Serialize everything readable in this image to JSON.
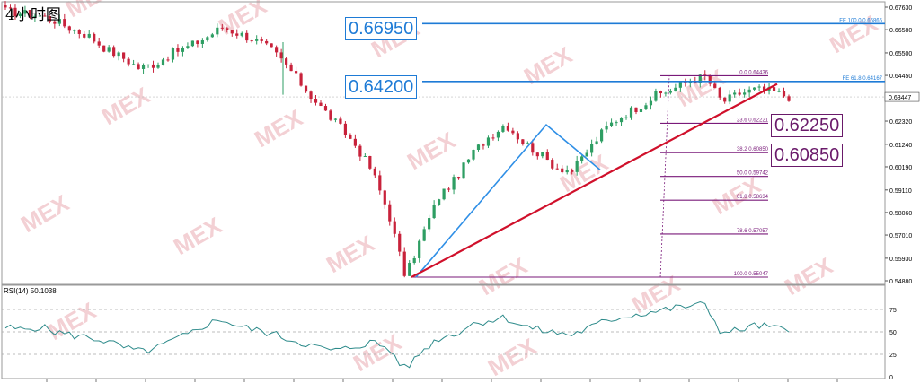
{
  "title": "4小时图",
  "chart_data": {
    "type": "candlestick",
    "price_axis": {
      "ticks": [
        "0.67630",
        "0.66580",
        "0.65500",
        "0.64450",
        "0.63447",
        "0.62320",
        "0.61240",
        "0.60190",
        "0.59110",
        "0.58060",
        "0.57010",
        "0.55930",
        "0.54880"
      ],
      "ylim": [
        0.5488,
        0.6763
      ],
      "current_price": "0.63447"
    },
    "rsi_axis": {
      "label": "RSI(14) 50.1038",
      "ticks": [
        "100",
        "75",
        "50",
        "25",
        "0"
      ],
      "ylim": [
        0,
        100
      ],
      "levels": [
        75,
        50,
        25
      ]
    },
    "levels": [
      {
        "name": "fe-100",
        "text": "FE 100.0  0.66865",
        "value": 0.66865,
        "color": "#1e7bd6"
      },
      {
        "name": "fe-618",
        "text": "FE 61.8  0.64167",
        "value": 0.64167,
        "color": "#1e7bd6"
      }
    ],
    "fibonacci": [
      {
        "text": "0.0  0.64436",
        "value": 0.64436
      },
      {
        "text": "23.6  0.62221",
        "value": 0.62221
      },
      {
        "text": "38.2  0.60850",
        "value": 0.6085
      },
      {
        "text": "50.0  0.59742",
        "value": 0.59742
      },
      {
        "text": "61.8  0.58634",
        "value": 0.58634
      },
      {
        "text": "78.6  0.57057",
        "value": 0.57057
      },
      {
        "text": "100.0  0.55047",
        "value": 0.55047
      }
    ],
    "callouts": [
      {
        "text": "0.66950",
        "value": 0.6695,
        "color": "#1e7bd6"
      },
      {
        "text": "0.64200",
        "value": 0.642,
        "color": "#1e7bd6"
      },
      {
        "text": "0.62250",
        "value": 0.6225,
        "color": "#6a1a6a"
      },
      {
        "text": "0.60850",
        "value": 0.6085,
        "color": "#6a1a6a"
      }
    ],
    "watermark": "MEX",
    "colors": {
      "bull": "#2e9e63",
      "bear": "#c8223b",
      "trendline": "#d0102b",
      "zigzag": "#2f8fe6",
      "fib": "#7a1a7a",
      "rsi": "#2c8a8a"
    },
    "price_path": [
      [
        0.6745,
        0.675
      ],
      [
        0.6735,
        0.674
      ],
      [
        0.6725,
        0.673
      ],
      [
        0.67,
        0.672
      ],
      [
        0.666,
        0.668
      ],
      [
        0.663,
        0.663
      ],
      [
        0.657,
        0.659
      ],
      [
        0.653,
        0.655
      ],
      [
        0.648,
        0.651
      ],
      [
        0.65,
        0.65
      ],
      [
        0.655,
        0.654
      ],
      [
        0.658,
        0.657
      ],
      [
        0.662,
        0.661
      ],
      [
        0.667,
        0.663
      ],
      [
        0.664,
        0.664
      ],
      [
        0.661,
        0.662
      ],
      [
        0.656,
        0.658
      ],
      [
        0.648,
        0.652
      ],
      [
        0.638,
        0.643
      ],
      [
        0.629,
        0.634
      ],
      [
        0.621,
        0.625
      ],
      [
        0.612,
        0.618
      ],
      [
        0.6,
        0.608
      ],
      [
        0.58,
        0.592
      ],
      [
        0.5505,
        0.56
      ],
      [
        0.57,
        0.563
      ],
      [
        0.588,
        0.579
      ],
      [
        0.596,
        0.59
      ],
      [
        0.608,
        0.6
      ],
      [
        0.616,
        0.61
      ],
      [
        0.622,
        0.618
      ],
      [
        0.614,
        0.619
      ],
      [
        0.608,
        0.612
      ],
      [
        0.602,
        0.606
      ],
      [
        0.6,
        0.602
      ],
      [
        0.61,
        0.605
      ],
      [
        0.62,
        0.614
      ],
      [
        0.626,
        0.622
      ],
      [
        0.63,
        0.628
      ],
      [
        0.635,
        0.633
      ],
      [
        0.638,
        0.637
      ],
      [
        0.642,
        0.64
      ],
      [
        0.644,
        0.642
      ],
      [
        0.632,
        0.638
      ],
      [
        0.636,
        0.634
      ],
      [
        0.638,
        0.637
      ],
      [
        0.637,
        0.638
      ],
      [
        0.6345,
        0.636
      ]
    ],
    "rsi_path": [
      55,
      52,
      56,
      50,
      46,
      44,
      40,
      33,
      28,
      31,
      40,
      47,
      58,
      64,
      56,
      52,
      48,
      42,
      37,
      31,
      29,
      34,
      39,
      31,
      8,
      29,
      43,
      48,
      59,
      63,
      66,
      57,
      52,
      49,
      47,
      54,
      62,
      67,
      70,
      73,
      76,
      79,
      80,
      48,
      52,
      57,
      55,
      50
    ]
  }
}
